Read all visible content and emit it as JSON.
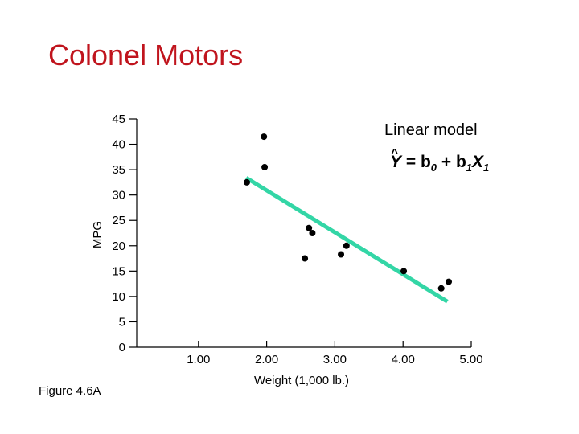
{
  "slide": {
    "title": "Colonel Motors",
    "figure_label": "Figure 4.6A"
  },
  "chart_data": {
    "type": "scatter",
    "xlabel": "Weight (1,000 lb.)",
    "ylabel": "MPG",
    "xlim": [
      0,
      5
    ],
    "ylim": [
      0,
      45
    ],
    "x_ticks": [
      "1.00",
      "2.00",
      "3.00",
      "4.00",
      "5.00"
    ],
    "y_ticks": [
      "0",
      "5",
      "10",
      "15",
      "20",
      "25",
      "30",
      "35",
      "40",
      "45"
    ],
    "points": [
      {
        "x": 1.96,
        "y": 41.5
      },
      {
        "x": 1.97,
        "y": 35.5
      },
      {
        "x": 1.71,
        "y": 32.5
      },
      {
        "x": 2.62,
        "y": 23.5
      },
      {
        "x": 2.67,
        "y": 22.5
      },
      {
        "x": 2.56,
        "y": 17.5
      },
      {
        "x": 3.09,
        "y": 18.3
      },
      {
        "x": 3.17,
        "y": 20.0
      },
      {
        "x": 4.01,
        "y": 15.0
      },
      {
        "x": 4.56,
        "y": 11.6
      },
      {
        "x": 4.67,
        "y": 12.9
      }
    ],
    "fit_line": {
      "x": [
        1.7,
        4.65
      ],
      "y": [
        33.4,
        9.0
      ],
      "color": "#33d6a6"
    },
    "annotation": {
      "title": "Linear model",
      "equation": "Ŷ = b0 + b1X1"
    },
    "point_color": "#000000"
  }
}
